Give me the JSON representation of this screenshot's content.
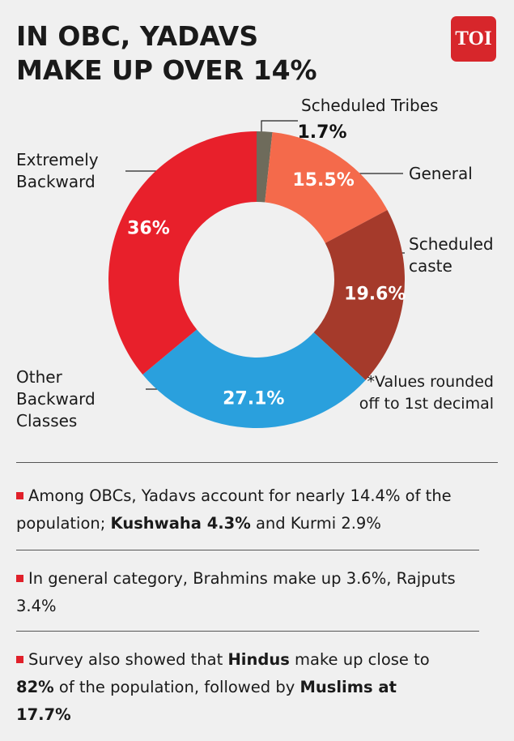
{
  "logo": "TOI",
  "chart_data": {
    "type": "pie",
    "donut": true,
    "title": "IN OBC, YADAVS MAKE UP OVER 14%",
    "categories": [
      "Scheduled Tribes",
      "General",
      "Scheduled caste",
      "Other Backward Classes",
      "Extremely Backward"
    ],
    "values": [
      1.7,
      15.5,
      19.6,
      27.1,
      36
    ],
    "value_labels": [
      "1.7%",
      "15.5%",
      "19.6%",
      "27.1%",
      "36%"
    ],
    "colors": [
      "#6e6b5b",
      "#f46a4b",
      "#a53a2b",
      "#2aa0dd",
      "#e8202b"
    ],
    "annotation": "*Values rounded off to 1st decimal"
  },
  "notes": [
    [
      {
        "text": "Among OBCs, Yadavs account for nearly 14.4% of the population; ",
        "bold": false
      },
      {
        "text": "Kushwaha 4.3%",
        "bold": true
      },
      {
        "text": " and Kurmi 2.9%",
        "bold": false
      }
    ],
    [
      {
        "text": "In general category, Brahmins make up 3.6%, Rajputs 3.4%",
        "bold": false
      }
    ],
    [
      {
        "text": "Survey also showed that ",
        "bold": false
      },
      {
        "text": "Hindus",
        "bold": true
      },
      {
        "text": " make up close to ",
        "bold": false
      },
      {
        "text": "82%",
        "bold": true
      },
      {
        "text": " of the population, followed by ",
        "bold": false
      },
      {
        "text": "Muslims at 17.7%",
        "bold": true
      }
    ]
  ]
}
